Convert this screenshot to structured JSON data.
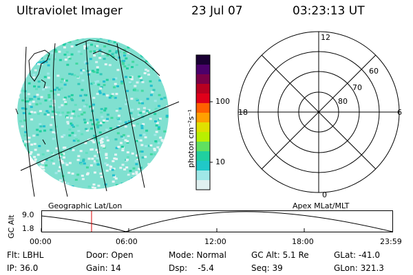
{
  "header": {
    "title": "Ultraviolet Imager",
    "date": "23 Jul 07",
    "time": "03:23:13 UT"
  },
  "colorbar": {
    "unit_label": "photon cm⁻²s⁻¹",
    "ticks": [
      "100",
      "10"
    ],
    "colors": [
      "#1a0033",
      "#4b006b",
      "#7a0047",
      "#b80020",
      "#e0001a",
      "#ff6000",
      "#ffa000",
      "#e0e000",
      "#b8f000",
      "#60e060",
      "#20d0a0",
      "#20c8c8",
      "#a0e8e8",
      "#e0f0f0"
    ]
  },
  "left_panel": {
    "caption": "Geographic Lat/Lon",
    "dominant_color": "#40d8c0"
  },
  "right_panel": {
    "caption": "Apex MLat/MLT",
    "mlt_labels": {
      "top": "12",
      "left": "18",
      "right": "6",
      "bottom": "0"
    },
    "mlat_labels": [
      "60",
      "70",
      "80"
    ]
  },
  "altitude_plot": {
    "ylabel": "GC Alt",
    "y_ticks": [
      "9.0",
      "1.8"
    ],
    "x_ticks": [
      "00:00",
      "06:00",
      "12:00",
      "18:00",
      "23:59"
    ],
    "marker_color": "#dd0000"
  },
  "footer": {
    "row1": {
      "flt": "Flt: LBHL",
      "door": "Door: Open",
      "mode": "Mode: Normal",
      "gcalt": "GC Alt: 5.1 Re",
      "glat": "GLat: -41.0"
    },
    "row2": {
      "ip": "IP: 36.0",
      "gain": "Gain: 14",
      "dsp": "Dsp:    -5.4",
      "seq": "Seq: 39",
      "glon": "GLon: 321.3"
    }
  }
}
